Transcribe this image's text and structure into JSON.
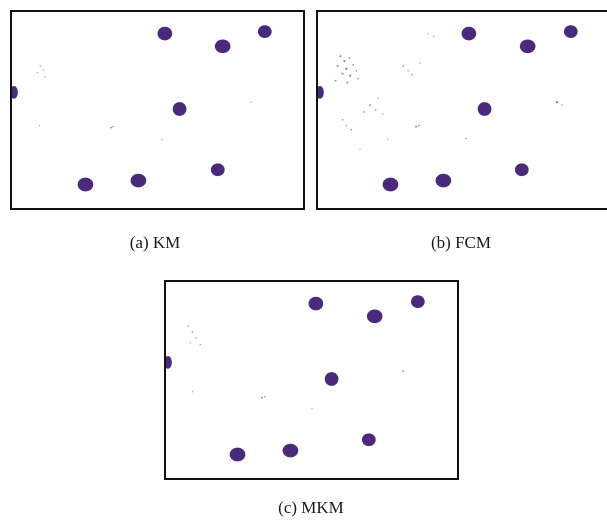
{
  "panels": [
    {
      "id": "a",
      "caption": "(a) KM"
    },
    {
      "id": "b",
      "caption": "(b) FCM"
    },
    {
      "id": "c",
      "caption": "(c) MKM"
    }
  ],
  "colors": {
    "cell": "#4a2a7a",
    "background": "#ffffff",
    "border": "#111111",
    "noise": "#8a8a8a"
  }
}
